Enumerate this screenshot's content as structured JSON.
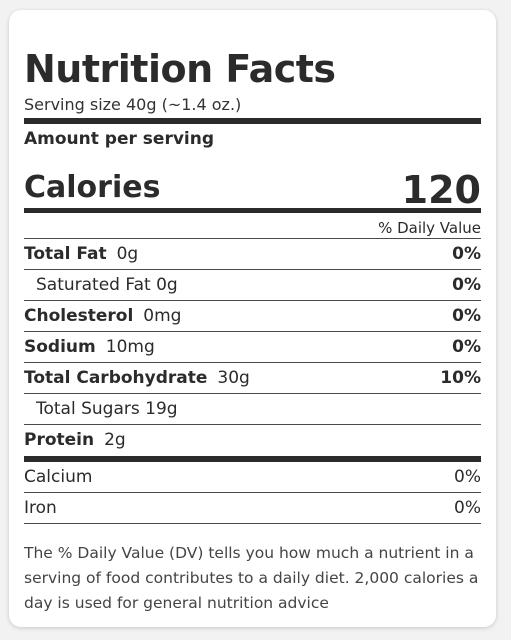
{
  "panel": {
    "title": "Nutrition Facts",
    "serving_size": "Serving size 40g (~1.4 oz.)",
    "amount_per_serving": "Amount per serving",
    "calories_label": "Calories",
    "calories_value": "120",
    "daily_value_header": "% Daily Value"
  },
  "nutrients": [
    {
      "name": "Total Fat",
      "amount": "0g",
      "dv": "0%"
    },
    {
      "name": "Saturated Fat 0g",
      "dv": "0%"
    },
    {
      "name": "Cholesterol",
      "amount": "0mg",
      "dv": "0%"
    },
    {
      "name": "Sodium",
      "amount": "10mg",
      "dv": "0%"
    },
    {
      "name": "Total Carbohydrate",
      "amount": "30g",
      "dv": "10%"
    },
    {
      "name": "Total Sugars 19g"
    },
    {
      "name": "Protein",
      "amount": "2g"
    }
  ],
  "minerals": [
    {
      "name": "Calcium",
      "dv": "0%"
    },
    {
      "name": "Iron",
      "dv": "0%"
    }
  ],
  "footnote": "The % Daily Value (DV) tells you how much a nutrient in a serving of food contributes to a daily diet. 2,000 calories a day is used for general nutrition advice"
}
